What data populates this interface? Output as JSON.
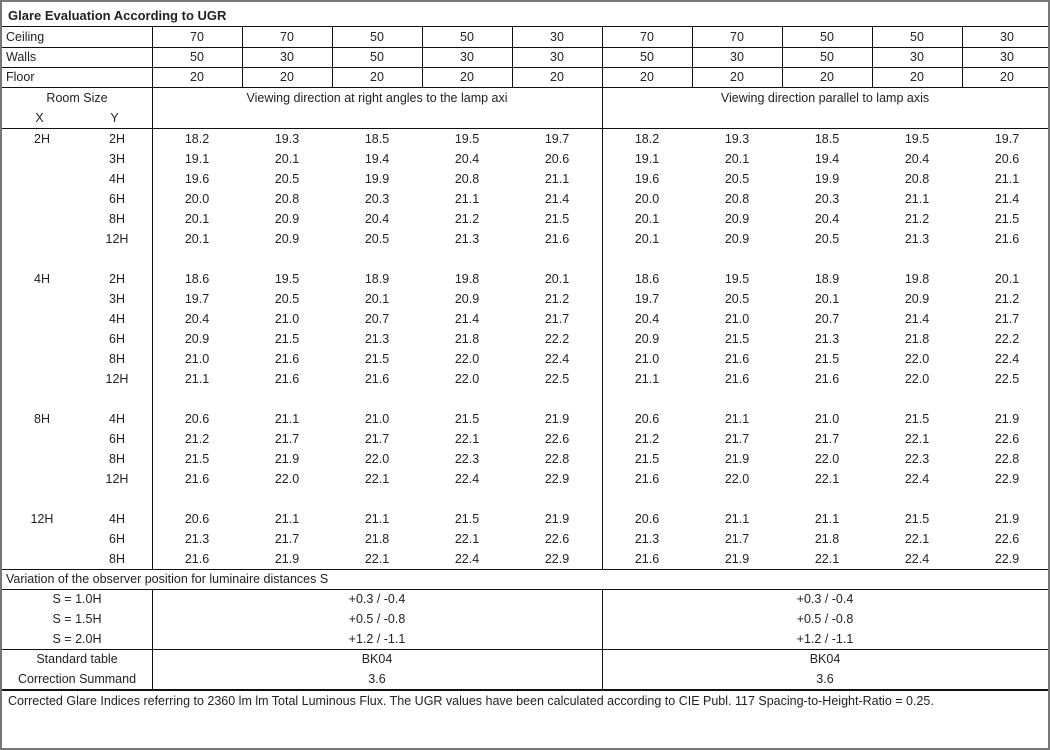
{
  "title": "Glare Evaluation According to UGR",
  "reflectances": [
    {
      "label": "Ceiling",
      "values": [
        "70",
        "70",
        "50",
        "50",
        "30",
        "70",
        "70",
        "50",
        "50",
        "30"
      ]
    },
    {
      "label": "Walls",
      "values": [
        "50",
        "30",
        "50",
        "30",
        "30",
        "50",
        "30",
        "50",
        "30",
        "30"
      ]
    },
    {
      "label": "Floor",
      "values": [
        "20",
        "20",
        "20",
        "20",
        "20",
        "20",
        "20",
        "20",
        "20",
        "20"
      ]
    }
  ],
  "header": {
    "room_size": "Room Size",
    "x": "X",
    "y": "Y",
    "left_direction": "Viewing direction at right angles to the lamp axi",
    "right_direction": "Viewing direction parallel to lamp axis"
  },
  "groups": [
    {
      "x": "2H",
      "rows": [
        {
          "y": "2H",
          "v": [
            "18.2",
            "19.3",
            "18.5",
            "19.5",
            "19.7",
            "18.2",
            "19.3",
            "18.5",
            "19.5",
            "19.7"
          ]
        },
        {
          "y": "3H",
          "v": [
            "19.1",
            "20.1",
            "19.4",
            "20.4",
            "20.6",
            "19.1",
            "20.1",
            "19.4",
            "20.4",
            "20.6"
          ]
        },
        {
          "y": "4H",
          "v": [
            "19.6",
            "20.5",
            "19.9",
            "20.8",
            "21.1",
            "19.6",
            "20.5",
            "19.9",
            "20.8",
            "21.1"
          ]
        },
        {
          "y": "6H",
          "v": [
            "20.0",
            "20.8",
            "20.3",
            "21.1",
            "21.4",
            "20.0",
            "20.8",
            "20.3",
            "21.1",
            "21.4"
          ]
        },
        {
          "y": "8H",
          "v": [
            "20.1",
            "20.9",
            "20.4",
            "21.2",
            "21.5",
            "20.1",
            "20.9",
            "20.4",
            "21.2",
            "21.5"
          ]
        },
        {
          "y": "12H",
          "v": [
            "20.1",
            "20.9",
            "20.5",
            "21.3",
            "21.6",
            "20.1",
            "20.9",
            "20.5",
            "21.3",
            "21.6"
          ]
        }
      ]
    },
    {
      "x": "4H",
      "rows": [
        {
          "y": "2H",
          "v": [
            "18.6",
            "19.5",
            "18.9",
            "19.8",
            "20.1",
            "18.6",
            "19.5",
            "18.9",
            "19.8",
            "20.1"
          ]
        },
        {
          "y": "3H",
          "v": [
            "19.7",
            "20.5",
            "20.1",
            "20.9",
            "21.2",
            "19.7",
            "20.5",
            "20.1",
            "20.9",
            "21.2"
          ]
        },
        {
          "y": "4H",
          "v": [
            "20.4",
            "21.0",
            "20.7",
            "21.4",
            "21.7",
            "20.4",
            "21.0",
            "20.7",
            "21.4",
            "21.7"
          ]
        },
        {
          "y": "6H",
          "v": [
            "20.9",
            "21.5",
            "21.3",
            "21.8",
            "22.2",
            "20.9",
            "21.5",
            "21.3",
            "21.8",
            "22.2"
          ]
        },
        {
          "y": "8H",
          "v": [
            "21.0",
            "21.6",
            "21.5",
            "22.0",
            "22.4",
            "21.0",
            "21.6",
            "21.5",
            "22.0",
            "22.4"
          ]
        },
        {
          "y": "12H",
          "v": [
            "21.1",
            "21.6",
            "21.6",
            "22.0",
            "22.5",
            "21.1",
            "21.6",
            "21.6",
            "22.0",
            "22.5"
          ]
        }
      ]
    },
    {
      "x": "8H",
      "rows": [
        {
          "y": "4H",
          "v": [
            "20.6",
            "21.1",
            "21.0",
            "21.5",
            "21.9",
            "20.6",
            "21.1",
            "21.0",
            "21.5",
            "21.9"
          ]
        },
        {
          "y": "6H",
          "v": [
            "21.2",
            "21.7",
            "21.7",
            "22.1",
            "22.6",
            "21.2",
            "21.7",
            "21.7",
            "22.1",
            "22.6"
          ]
        },
        {
          "y": "8H",
          "v": [
            "21.5",
            "21.9",
            "22.0",
            "22.3",
            "22.8",
            "21.5",
            "21.9",
            "22.0",
            "22.3",
            "22.8"
          ]
        },
        {
          "y": "12H",
          "v": [
            "21.6",
            "22.0",
            "22.1",
            "22.4",
            "22.9",
            "21.6",
            "22.0",
            "22.1",
            "22.4",
            "22.9"
          ]
        }
      ]
    },
    {
      "x": "12H",
      "rows": [
        {
          "y": "4H",
          "v": [
            "20.6",
            "21.1",
            "21.1",
            "21.5",
            "21.9",
            "20.6",
            "21.1",
            "21.1",
            "21.5",
            "21.9"
          ]
        },
        {
          "y": "6H",
          "v": [
            "21.3",
            "21.7",
            "21.8",
            "22.1",
            "22.6",
            "21.3",
            "21.7",
            "21.8",
            "22.1",
            "22.6"
          ]
        },
        {
          "y": "8H",
          "v": [
            "21.6",
            "21.9",
            "22.1",
            "22.4",
            "22.9",
            "21.6",
            "21.9",
            "22.1",
            "22.4",
            "22.9"
          ]
        }
      ]
    }
  ],
  "variation": {
    "title": "Variation of the observer position for luminaire distances S",
    "rows": [
      {
        "label": "S = 1.0H",
        "left": "+0.3 / -0.4",
        "right": "+0.3 / -0.4"
      },
      {
        "label": "S = 1.5H",
        "left": "+0.5 / -0.8",
        "right": "+0.5 / -0.8"
      },
      {
        "label": "S = 2.0H",
        "left": "+1.2 / -1.1",
        "right": "+1.2 / -1.1"
      }
    ]
  },
  "standard": {
    "label": "Standard table",
    "left": "BK04",
    "right": "BK04"
  },
  "correction": {
    "label": "Correction Summand",
    "left": "3.6",
    "right": "3.6"
  },
  "footnote": "Corrected Glare Indices referring to 2360 lm lm Total Luminous Flux. The UGR values have been calculated according to CIE Publ. 117    Spacing-to-Height-Ratio = 0.25."
}
